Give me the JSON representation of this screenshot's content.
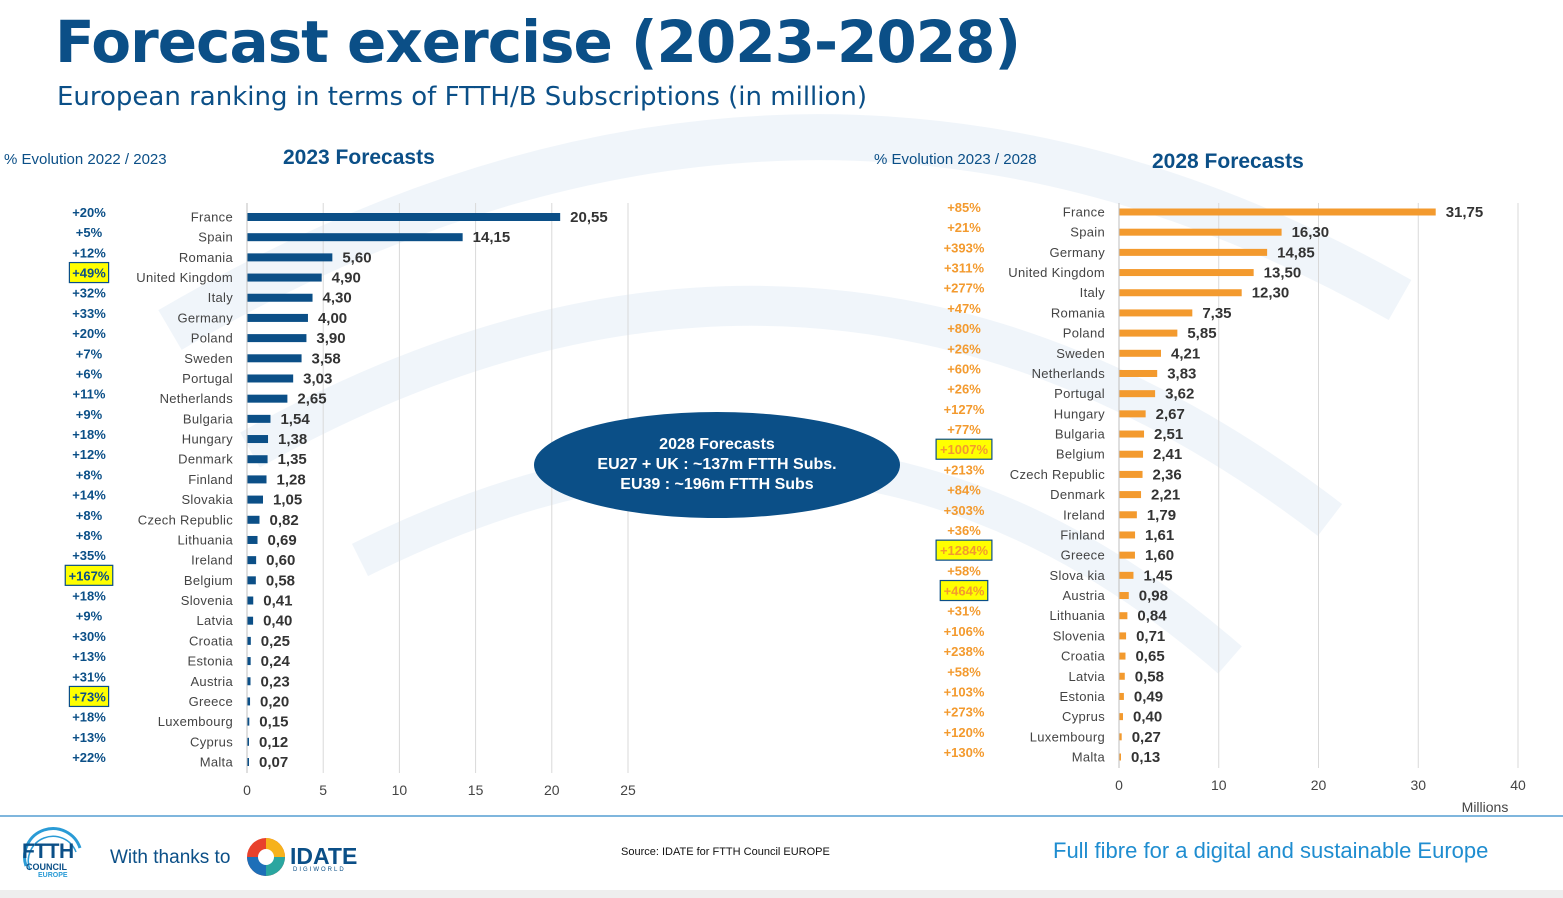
{
  "title": "Forecast exercise (2023-2028)",
  "subtitle": "European ranking in terms of FTTH/B Subscriptions (in million)",
  "bubble": {
    "line1": "2028 Forecasts",
    "line2": "EU27 + UK : ~137m FTTH Subs.",
    "line3": "EU39 : ~196m FTTH Subs"
  },
  "footer": {
    "logo_text": "FTTH",
    "logo_sub": "COUNCIL",
    "logo_sub2": "EUROPE",
    "thanks": "With thanks to",
    "partner": "IDATE",
    "partner_sub": "DIGIWORLD",
    "source": "Source: IDATE for FTTH Council EUROPE",
    "tagline": "Full fibre for a digital and sustainable Europe"
  },
  "colors": {
    "brand_blue": "#0b4f87",
    "bar_2023": "#0b4f87",
    "bar_2028": "#f39a2e",
    "highlight": "#ffff00",
    "evo_2028": "#f39a2e"
  },
  "chart_data": [
    {
      "type": "bar",
      "orientation": "horizontal",
      "title": "2023 Forecasts",
      "evolution_header": "% Evolution 2022 / 2023",
      "xlim": [
        0,
        25
      ],
      "x_ticks": [
        "0",
        "5",
        "10",
        "15",
        "20",
        "25"
      ],
      "categories": [
        "France",
        "Spain",
        "Romania",
        "United Kingdom",
        "Italy",
        "Germany",
        "Poland",
        "Sweden",
        "Portugal",
        "Netherlands",
        "Bulgaria",
        "Hungary",
        "Denmark",
        "Finland",
        "Slovakia",
        "Czech Republic",
        "Lithuania",
        "Ireland",
        "Belgium",
        "Slovenia",
        "Latvia",
        "Croatia",
        "Estonia",
        "Austria",
        "Greece",
        "Luxembourg",
        "Cyprus",
        "Malta"
      ],
      "values": [
        20.55,
        14.15,
        5.6,
        4.9,
        4.3,
        4.0,
        3.9,
        3.58,
        3.03,
        2.65,
        1.54,
        1.38,
        1.35,
        1.28,
        1.05,
        0.82,
        0.69,
        0.6,
        0.58,
        0.41,
        0.4,
        0.25,
        0.24,
        0.23,
        0.2,
        0.15,
        0.12,
        0.07
      ],
      "value_labels": [
        "20,55",
        "14,15",
        "5,60",
        "4,90",
        "4,30",
        "4,00",
        "3,90",
        "3,58",
        "3,03",
        "2,65",
        "1,54",
        "1,38",
        "1,35",
        "1,28",
        "1,05",
        "0,82",
        "0,69",
        "0,60",
        "0,58",
        "0,41",
        "0,40",
        "0,25",
        "0,24",
        "0,23",
        "0,20",
        "0,15",
        "0,12",
        "0,07"
      ],
      "evolution": [
        "+20%",
        "+5%",
        "+12%",
        "+49%",
        "+32%",
        "+33%",
        "+20%",
        "+7%",
        "+6%",
        "+11%",
        "+9%",
        "+18%",
        "+12%",
        "+8%",
        "+14%",
        "+8%",
        "+8%",
        "+35%",
        "+167%",
        "+18%",
        "+9%",
        "+30%",
        "+13%",
        "+31%",
        "+73%",
        "+18%",
        "+13%",
        "+22%"
      ],
      "highlighted": [
        "United Kingdom",
        "Belgium",
        "Greece"
      ]
    },
    {
      "type": "bar",
      "orientation": "horizontal",
      "title": "2028 Forecasts",
      "evolution_header": "% Evolution 2023 / 2028",
      "xlim": [
        0,
        40
      ],
      "x_ticks": [
        "0",
        "10",
        "20",
        "30",
        "40"
      ],
      "xlabel": "Millions",
      "categories": [
        "France",
        "Spain",
        "Germany",
        "United Kingdom",
        "Italy",
        "Romania",
        "Poland",
        "Sweden",
        "Netherlands",
        "Portugal",
        "Hungary",
        "Bulgaria",
        "Belgium",
        "Czech Republic",
        "Denmark",
        "Ireland",
        "Finland",
        "Greece",
        "Slovakia",
        "Austria",
        "Lithuania",
        "Slovenia",
        "Croatia",
        "Latvia",
        "Estonia",
        "Cyprus",
        "Luxembourg",
        "Malta"
      ],
      "category_labels": [
        "France",
        "Spain",
        "Germany",
        "United Kingdom",
        "Italy",
        "Romania",
        "Poland",
        "Sweden",
        "Netherlands",
        "Portugal",
        "Hungary",
        "Bulgaria",
        "Belgium",
        "Czech Republic",
        "Denmark",
        "Ireland",
        "Finland",
        "Greece",
        "Slova kia",
        "Austria",
        "Lithuania",
        "Slovenia",
        "Croatia",
        "Latvia",
        "Estonia",
        "Cyprus",
        "Luxembourg",
        "Malta"
      ],
      "values": [
        31.75,
        16.3,
        14.85,
        13.5,
        12.3,
        7.35,
        5.85,
        4.21,
        3.83,
        3.62,
        2.67,
        2.51,
        2.41,
        2.36,
        2.21,
        1.79,
        1.61,
        1.6,
        1.45,
        0.98,
        0.84,
        0.71,
        0.65,
        0.58,
        0.49,
        0.4,
        0.27,
        0.13
      ],
      "value_labels": [
        "31,75",
        "16,30",
        "14,85",
        "13,50",
        "12,30",
        "7,35",
        "5,85",
        "4,21",
        "3,83",
        "3,62",
        "2,67",
        "2,51",
        "2,41",
        "2,36",
        "2,21",
        "1,79",
        "1,61",
        "1,60",
        "1,45",
        "0,98",
        "0,84",
        "0,71",
        "0,65",
        "0,58",
        "0,49",
        "0,40",
        "0,27",
        "0,13"
      ],
      "evolution": [
        "+85%",
        "+21%",
        "+393%",
        "+311%",
        "+277%",
        "+47%",
        "+80%",
        "+26%",
        "+60%",
        "+26%",
        "+127%",
        "+77%",
        "+1007%",
        "+213%",
        "+84%",
        "+303%",
        "+36%",
        "+1284%",
        "+58%",
        "+464%",
        "+31%",
        "+106%",
        "+238%",
        "+58%",
        "+103%",
        "+273%",
        "+120%",
        "+130%"
      ],
      "highlighted": [
        "Belgium",
        "Greece",
        "Austria"
      ]
    }
  ]
}
